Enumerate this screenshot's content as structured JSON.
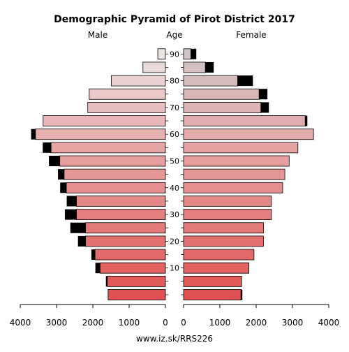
{
  "chart_data": {
    "type": "bar",
    "subtype": "population-pyramid",
    "title": "Demographic Pyramid of Pirot District 2017",
    "left_label": "Male",
    "center_label": "Age",
    "right_label": "Female",
    "footer": "www.iz.sk/RRS226",
    "age_groups": [
      "0-4",
      "5-9",
      "10-14",
      "15-19",
      "20-24",
      "25-29",
      "30-34",
      "35-39",
      "40-44",
      "45-49",
      "50-54",
      "55-59",
      "60-64",
      "65-69",
      "70-74",
      "75-79",
      "80-84",
      "85-89",
      "90+"
    ],
    "age_ticks": [
      10,
      20,
      30,
      40,
      50,
      60,
      70,
      80,
      90
    ],
    "male_base": [
      1580,
      1600,
      1800,
      1940,
      2200,
      2200,
      2450,
      2450,
      2730,
      2790,
      2910,
      3150,
      3580,
      3370,
      2140,
      2100,
      1490,
      620,
      210
    ],
    "male_extra": [
      0,
      40,
      130,
      100,
      210,
      420,
      320,
      270,
      170,
      170,
      300,
      230,
      120,
      0,
      0,
      0,
      0,
      0,
      0
    ],
    "female_base": [
      1580,
      1600,
      1800,
      1940,
      2200,
      2200,
      2420,
      2420,
      2730,
      2790,
      2910,
      3150,
      3580,
      3350,
      2130,
      2080,
      1490,
      600,
      200
    ],
    "female_extra": [
      40,
      0,
      0,
      0,
      0,
      0,
      0,
      0,
      0,
      0,
      0,
      0,
      0,
      60,
      220,
      230,
      420,
      230,
      150
    ],
    "x_ticks_male": [
      4000,
      3000,
      2000,
      1000,
      0
    ],
    "x_ticks_female": [
      0,
      1000,
      2000,
      3000,
      4000
    ],
    "xlim": [
      0,
      4000
    ],
    "colors": {
      "extra": "#000000",
      "low_age": "#e05252",
      "mid_age": "#e6a3a3",
      "high_age": "#ebe2e2",
      "female_high_age": "#d0c4c4"
    }
  }
}
